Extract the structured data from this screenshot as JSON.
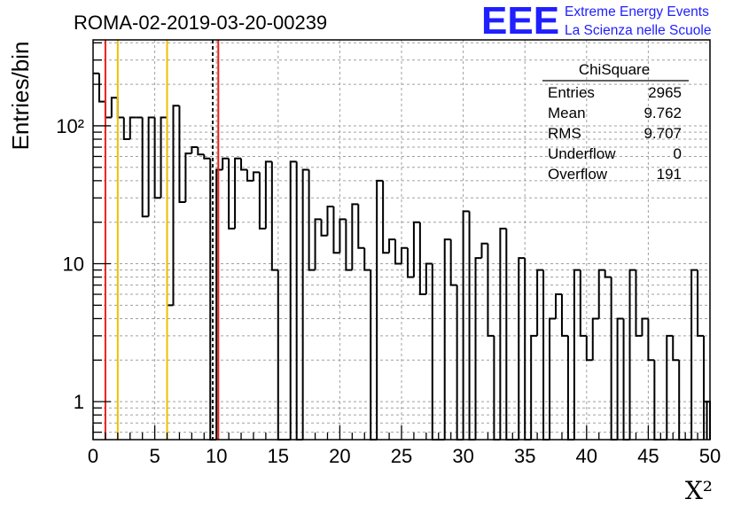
{
  "title": "ROMA-02-2019-03-20-00239",
  "logo": {
    "mark": "EEE",
    "line1": "Extreme Energy Events",
    "line2": "La Scienza nelle Scuole",
    "color": "#1f1fff"
  },
  "stats": {
    "name": "ChiSquare",
    "rows": [
      {
        "label": "Entries",
        "value": "2965"
      },
      {
        "label": "Mean",
        "value": "9.762"
      },
      {
        "label": "RMS",
        "value": "9.707"
      },
      {
        "label": "Underflow",
        "value": "0"
      },
      {
        "label": "Overflow",
        "value": "191"
      }
    ]
  },
  "chart_data": {
    "type": "bar",
    "histogram": true,
    "title": "ROMA-02-2019-03-20-00239",
    "xlabel": "X²",
    "ylabel": "Entries/bin",
    "xlim": [
      0,
      50
    ],
    "ylim": [
      0.53,
      420
    ],
    "y_scale": "log",
    "bin_width": 0.5,
    "grid": true,
    "x_ticks": [
      "0",
      "5",
      "10",
      "15",
      "20",
      "25",
      "30",
      "35",
      "40",
      "45",
      "50"
    ],
    "y_tick_labels": [
      {
        "value": 1,
        "label": "1"
      },
      {
        "value": 10,
        "label": "10"
      },
      {
        "value": 100,
        "label": "10²"
      }
    ],
    "values": [
      240,
      150,
      115,
      160,
      115,
      80,
      115,
      115,
      22,
      115,
      30,
      115,
      5,
      140,
      28,
      63,
      70,
      62,
      58,
      0,
      48,
      58,
      18,
      58,
      48,
      40,
      46,
      18,
      55,
      9,
      0,
      0,
      55,
      0,
      48,
      9,
      21,
      16,
      26,
      12,
      21,
      9,
      27,
      13,
      9,
      0,
      40,
      12,
      15,
      10,
      13,
      8,
      20,
      6,
      10,
      0,
      0,
      15,
      7,
      0,
      24,
      0,
      11,
      14,
      3,
      0,
      18,
      0,
      0,
      11,
      0,
      3,
      9,
      0,
      4,
      6,
      3,
      0,
      9,
      3,
      2,
      4,
      9,
      8,
      0,
      4,
      0,
      9,
      3,
      4,
      2,
      0,
      0,
      3,
      2,
      0,
      0,
      9,
      3,
      1
    ],
    "overflow_bins": [
      [
        49.5,
        49.75,
        1
      ],
      [
        49.75,
        50,
        1
      ]
    ],
    "vertical_lines": [
      {
        "x": 1,
        "color": "#e8201a",
        "style": "solid"
      },
      {
        "x": 2,
        "color": "#f0c000",
        "style": "solid"
      },
      {
        "x": 6,
        "color": "#f0c000",
        "style": "solid"
      },
      {
        "x": 9.7,
        "color": "#000000",
        "style": "dashed"
      },
      {
        "x": 10.15,
        "color": "#e8201a",
        "style": "solid"
      }
    ],
    "line_color": "#000000"
  }
}
